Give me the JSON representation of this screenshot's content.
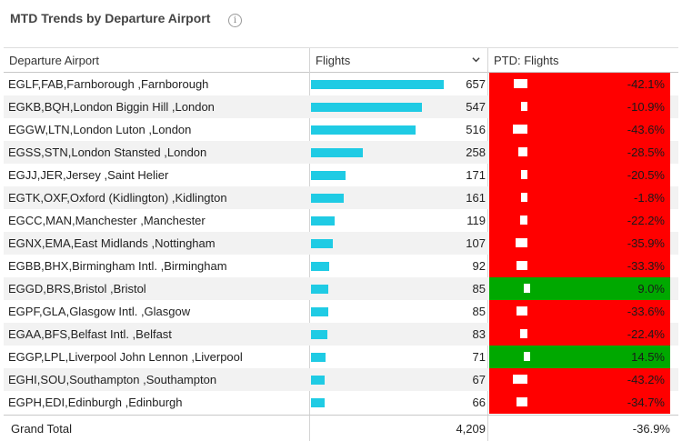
{
  "header": {
    "title": "MTD Trends by Departure Airport",
    "info_icon": "i"
  },
  "columns": {
    "airport": "Departure Airport",
    "flights": "Flights",
    "ptd": "PTD: Flights"
  },
  "max_flights": 657,
  "rows": [
    {
      "airport": "EGLF,FAB,Farnborough ,Farnborough",
      "flights": 657,
      "flights_text": "657",
      "ptd": -42.1,
      "ptd_text": "-42.1%"
    },
    {
      "airport": "EGKB,BQH,London Biggin Hill ,London",
      "flights": 547,
      "flights_text": "547",
      "ptd": -10.9,
      "ptd_text": "-10.9%"
    },
    {
      "airport": "EGGW,LTN,London Luton ,London",
      "flights": 516,
      "flights_text": "516",
      "ptd": -43.6,
      "ptd_text": "-43.6%"
    },
    {
      "airport": "EGSS,STN,London Stansted ,London",
      "flights": 258,
      "flights_text": "258",
      "ptd": -28.5,
      "ptd_text": "-28.5%"
    },
    {
      "airport": "EGJJ,JER,Jersey ,Saint Helier",
      "flights": 171,
      "flights_text": "171",
      "ptd": -20.5,
      "ptd_text": "-20.5%"
    },
    {
      "airport": "EGTK,OXF,Oxford (Kidlington) ,Kidlington",
      "flights": 161,
      "flights_text": "161",
      "ptd": -1.8,
      "ptd_text": "-1.8%"
    },
    {
      "airport": "EGCC,MAN,Manchester ,Manchester",
      "flights": 119,
      "flights_text": "119",
      "ptd": -22.2,
      "ptd_text": "-22.2%"
    },
    {
      "airport": "EGNX,EMA,East Midlands ,Nottingham",
      "flights": 107,
      "flights_text": "107",
      "ptd": -35.9,
      "ptd_text": "-35.9%"
    },
    {
      "airport": "EGBB,BHX,Birmingham Intl. ,Birmingham",
      "flights": 92,
      "flights_text": "92",
      "ptd": -33.3,
      "ptd_text": "-33.3%"
    },
    {
      "airport": "EGGD,BRS,Bristol ,Bristol",
      "flights": 85,
      "flights_text": "85",
      "ptd": 9.0,
      "ptd_text": "9.0%"
    },
    {
      "airport": "EGPF,GLA,Glasgow Intl. ,Glasgow",
      "flights": 85,
      "flights_text": "85",
      "ptd": -33.6,
      "ptd_text": "-33.6%"
    },
    {
      "airport": "EGAA,BFS,Belfast Intl. ,Belfast",
      "flights": 83,
      "flights_text": "83",
      "ptd": -22.4,
      "ptd_text": "-22.4%"
    },
    {
      "airport": "EGGP,LPL,Liverpool John Lennon ,Liverpool",
      "flights": 71,
      "flights_text": "71",
      "ptd": 14.5,
      "ptd_text": "14.5%"
    },
    {
      "airport": "EGHI,SOU,Southampton ,Southampton",
      "flights": 67,
      "flights_text": "67",
      "ptd": -43.2,
      "ptd_text": "-43.2%"
    },
    {
      "airport": "EGPH,EDI,Edinburgh ,Edinburgh",
      "flights": 66,
      "flights_text": "66",
      "ptd": -34.7,
      "ptd_text": "-34.7%"
    }
  ],
  "total": {
    "label": "Grand Total",
    "flights": "4,209",
    "ptd": "-36.9%"
  },
  "colors": {
    "bar": "#1fcbe4",
    "negative": "#ff0000",
    "positive": "#00a800"
  },
  "icons": {
    "sort": "chevron-down-icon",
    "info": "info-icon"
  }
}
